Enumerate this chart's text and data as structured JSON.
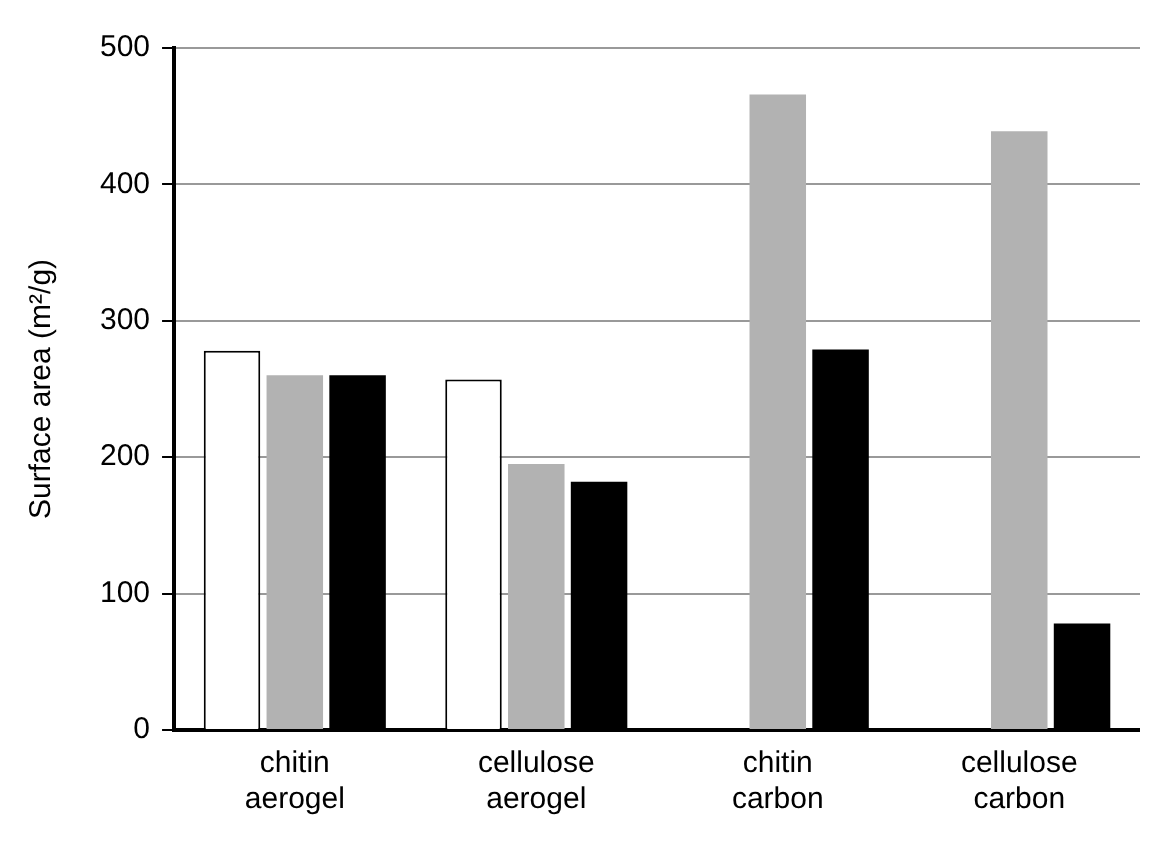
{
  "chart_data": {
    "type": "bar",
    "ylabel": "Surface area (m²/g)",
    "categories": [
      "chitin aerogel",
      "cellulose aerogel",
      "chitin carbon",
      "cellulose carbon"
    ],
    "series": [
      {
        "color": "#ffffff",
        "values": [
          278,
          257,
          null,
          null
        ]
      },
      {
        "color": "#b2b2b2",
        "values": [
          260,
          195,
          466,
          439
        ]
      },
      {
        "color": "#000000",
        "values": [
          260,
          182,
          279,
          78
        ]
      }
    ],
    "ylim": [
      0,
      500
    ],
    "yticks": [
      0,
      100,
      200,
      300,
      400,
      500
    ],
    "grid": "y",
    "legend": false
  }
}
